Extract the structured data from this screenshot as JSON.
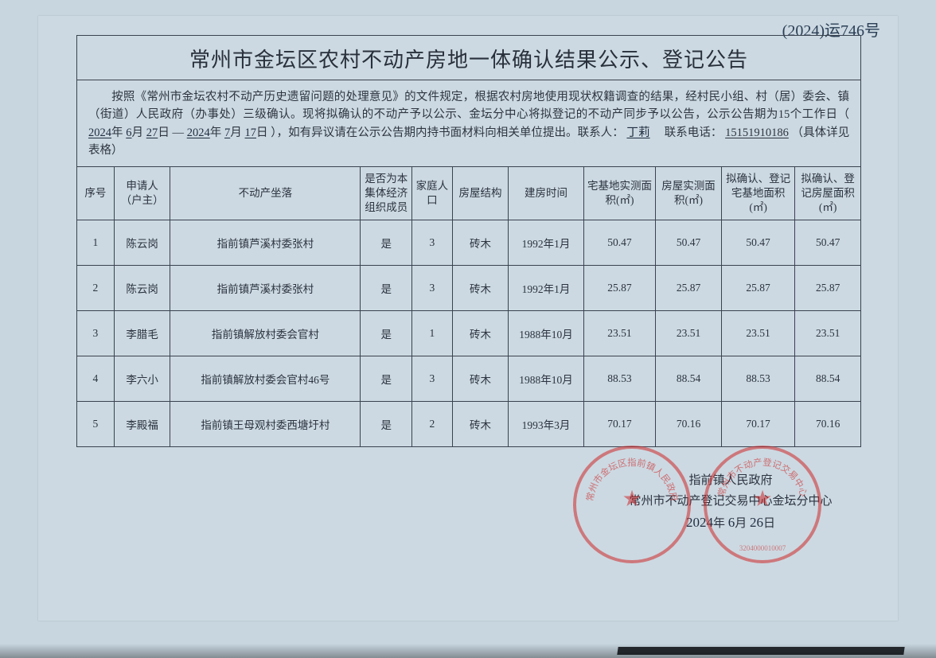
{
  "annotation_topright": "(2024)运746号",
  "title": "常州市金坛区农村不动产房地一体确认结果公示、登记公告",
  "intro": {
    "part1": "按照《常州市金坛农村不动产历史遗留问题的处理意见》的文件规定，根据农村房地使用现状权籍调查的结果，经村民小组、村（居）委会、镇（街道）人民政府（办事处）三级确认。现将拟确认的不动产予以公示、金坛分中心将拟登记的不动产同步予以公告，公示公告期为15个工作日（",
    "hand_year1": "2024",
    "txt_y1": "年",
    "hand_month1": "6",
    "txt_m1": "月",
    "hand_day1": "27",
    "txt_d1": "日",
    "to_sep": "—",
    "hand_year2": "2024",
    "txt_y2": "年",
    "hand_month2": "7",
    "txt_m2": "月",
    "hand_day2": "17",
    "txt_d2": "日",
    "part2": "），如有异议请在公示公告期内持书面材料向相关单位提出。联系人：",
    "contact_name": "丁莉",
    "part3": "　联系电话：",
    "contact_phone": "15151910186",
    "part4": "（具体详见表格）"
  },
  "columns": {
    "seq": "序号",
    "applicant": "申请人\n（户主）",
    "location": "不动产坐落",
    "member": "是否为本集体经济组织成员",
    "population": "家庭人口",
    "structure": "房屋结构",
    "build_date": "建房时间",
    "land_area": "宅基地实测面积(㎡)",
    "house_area": "房屋实测面积(㎡)",
    "confirm_land": "拟确认、登记宅基地面积(㎡)",
    "confirm_house": "拟确认、登记房屋面积(㎡)"
  },
  "rows": [
    {
      "seq": "1",
      "applicant": "陈云岗",
      "location": "指前镇芦溪村委张村",
      "member": "是",
      "population": "3",
      "structure": "砖木",
      "build_date": "1992年1月",
      "land_area": "50.47",
      "house_area": "50.47",
      "confirm_land": "50.47",
      "confirm_house": "50.47"
    },
    {
      "seq": "2",
      "applicant": "陈云岗",
      "location": "指前镇芦溪村委张村",
      "member": "是",
      "population": "3",
      "structure": "砖木",
      "build_date": "1992年1月",
      "land_area": "25.87",
      "house_area": "25.87",
      "confirm_land": "25.87",
      "confirm_house": "25.87"
    },
    {
      "seq": "3",
      "applicant": "李腊毛",
      "location": "指前镇解放村委会官村",
      "member": "是",
      "population": "1",
      "structure": "砖木",
      "build_date": "1988年10月",
      "land_area": "23.51",
      "house_area": "23.51",
      "confirm_land": "23.51",
      "confirm_house": "23.51"
    },
    {
      "seq": "4",
      "applicant": "李六小",
      "location": "指前镇解放村委会官村46号",
      "member": "是",
      "population": "3",
      "structure": "砖木",
      "build_date": "1988年10月",
      "land_area": "88.53",
      "house_area": "88.54",
      "confirm_land": "88.53",
      "confirm_house": "88.54"
    },
    {
      "seq": "5",
      "applicant": "李殿福",
      "location": "指前镇王母观村委西塘圩村",
      "member": "是",
      "population": "2",
      "structure": "砖木",
      "build_date": "1993年3月",
      "land_area": "70.17",
      "house_area": "70.16",
      "confirm_land": "70.17",
      "confirm_house": "70.16"
    }
  ],
  "footer": {
    "line1": "指前镇人民政府",
    "line2": "常州市不动产登记交易中心金坛分中心",
    "date_year": "2024",
    "txt_y": "年",
    "date_month": "6",
    "txt_m": "月",
    "date_day": "26",
    "txt_d": "日"
  },
  "stamps": {
    "s1_text": "常州市金坛区指前镇人民政府",
    "s2_text": "常州市不动产登记交易中心",
    "s2_code": "3204000010007"
  }
}
